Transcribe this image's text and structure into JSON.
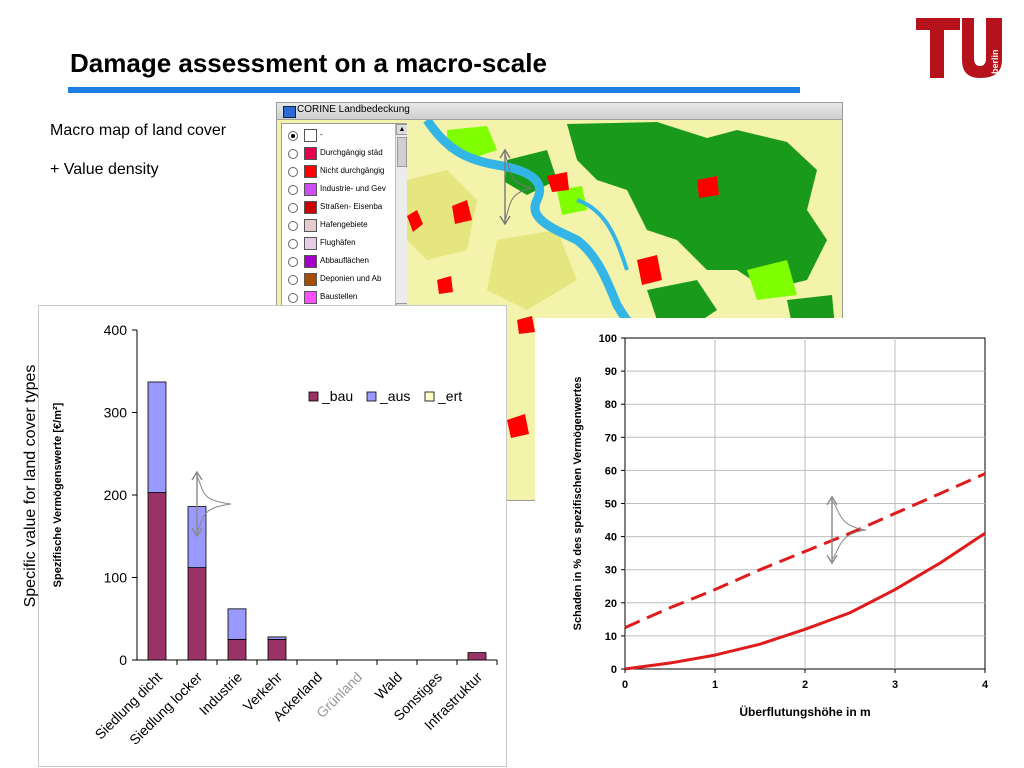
{
  "slide": {
    "title": "Damage assessment on a macro-scale",
    "lead_1": "Macro map of land cover",
    "lead_2": "+ Value density",
    "side_label": "Specific value for land cover types",
    "title_rule_color": "#1e7fe6",
    "logo_color": "#b5121b",
    "logo_text": "berlin"
  },
  "map_window": {
    "title": "CORINE Landbedeckung",
    "legend_items": [
      {
        "label": "-",
        "color": "#ffffff",
        "selected": true
      },
      {
        "label": "Durchgängig städ",
        "color": "#e6004d",
        "selected": false
      },
      {
        "label": "Nicht durchgängig",
        "color": "#ff0000",
        "selected": false
      },
      {
        "label": "Industrie- und Gev",
        "color": "#cc4df2",
        "selected": false
      },
      {
        "label": "Straßen- Eisenba",
        "color": "#cc0000",
        "selected": false
      },
      {
        "label": "Hafengebiete",
        "color": "#e6cccc",
        "selected": false
      },
      {
        "label": "Flughäfen",
        "color": "#e6cce6",
        "selected": false
      },
      {
        "label": "Abbauflächen",
        "color": "#a600cc",
        "selected": false
      },
      {
        "label": "Deponien und Ab",
        "color": "#a64d00",
        "selected": false
      },
      {
        "label": "Baustellen",
        "color": "#ff4dff",
        "selected": false
      }
    ]
  },
  "chart_data": [
    {
      "type": "bar",
      "stacked": true,
      "ylabel": "Spezifische Vermögenswerte [€/m²]",
      "xlabel": "",
      "ylim": [
        0,
        400
      ],
      "yticks": [
        0,
        100,
        200,
        300,
        400
      ],
      "categories": [
        "Siedlung dicht",
        "Siedlung locker",
        "Industrie",
        "Verkehr",
        "Ackerland",
        "Grünland",
        "Wald",
        "Sonstiges",
        "Infrastruktur"
      ],
      "series": [
        {
          "name": "_bau",
          "color": "#993366",
          "values": [
            203,
            112,
            25,
            25,
            0,
            0,
            0,
            0,
            9
          ]
        },
        {
          "name": "_aus",
          "color": "#9999ff",
          "values": [
            134,
            74,
            37,
            3,
            0,
            0,
            0,
            0,
            0
          ]
        },
        {
          "name": "_ert",
          "color": "#ffffcc",
          "values": [
            0,
            0,
            0,
            0,
            0,
            0,
            0,
            0,
            0
          ]
        }
      ],
      "legend_position": "top-right",
      "grid": false
    },
    {
      "type": "line",
      "xlabel": "Überflutungshöhe in m",
      "ylabel": "Schaden in % des spezifischen Vermögenwertes",
      "xlim": [
        0,
        4
      ],
      "ylim": [
        0,
        100
      ],
      "xticks": [
        0,
        1,
        2,
        3,
        4
      ],
      "yticks": [
        0,
        10,
        20,
        30,
        40,
        50,
        60,
        70,
        80,
        90,
        100
      ],
      "grid": true,
      "series": [
        {
          "style": "solid",
          "color": "#e01b1b",
          "x": [
            0,
            0.5,
            1,
            1.5,
            2,
            2.5,
            3,
            3.5,
            4
          ],
          "y": [
            0,
            1.8,
            4.2,
            7.5,
            12,
            17,
            24,
            32,
            41
          ]
        },
        {
          "style": "dashed",
          "color": "#e01b1b",
          "x": [
            0,
            0.5,
            1,
            1.5,
            2,
            2.5,
            3,
            3.5,
            4
          ],
          "y": [
            12.5,
            18.5,
            24,
            30,
            35.5,
            41,
            47,
            53,
            59
          ]
        }
      ]
    }
  ]
}
